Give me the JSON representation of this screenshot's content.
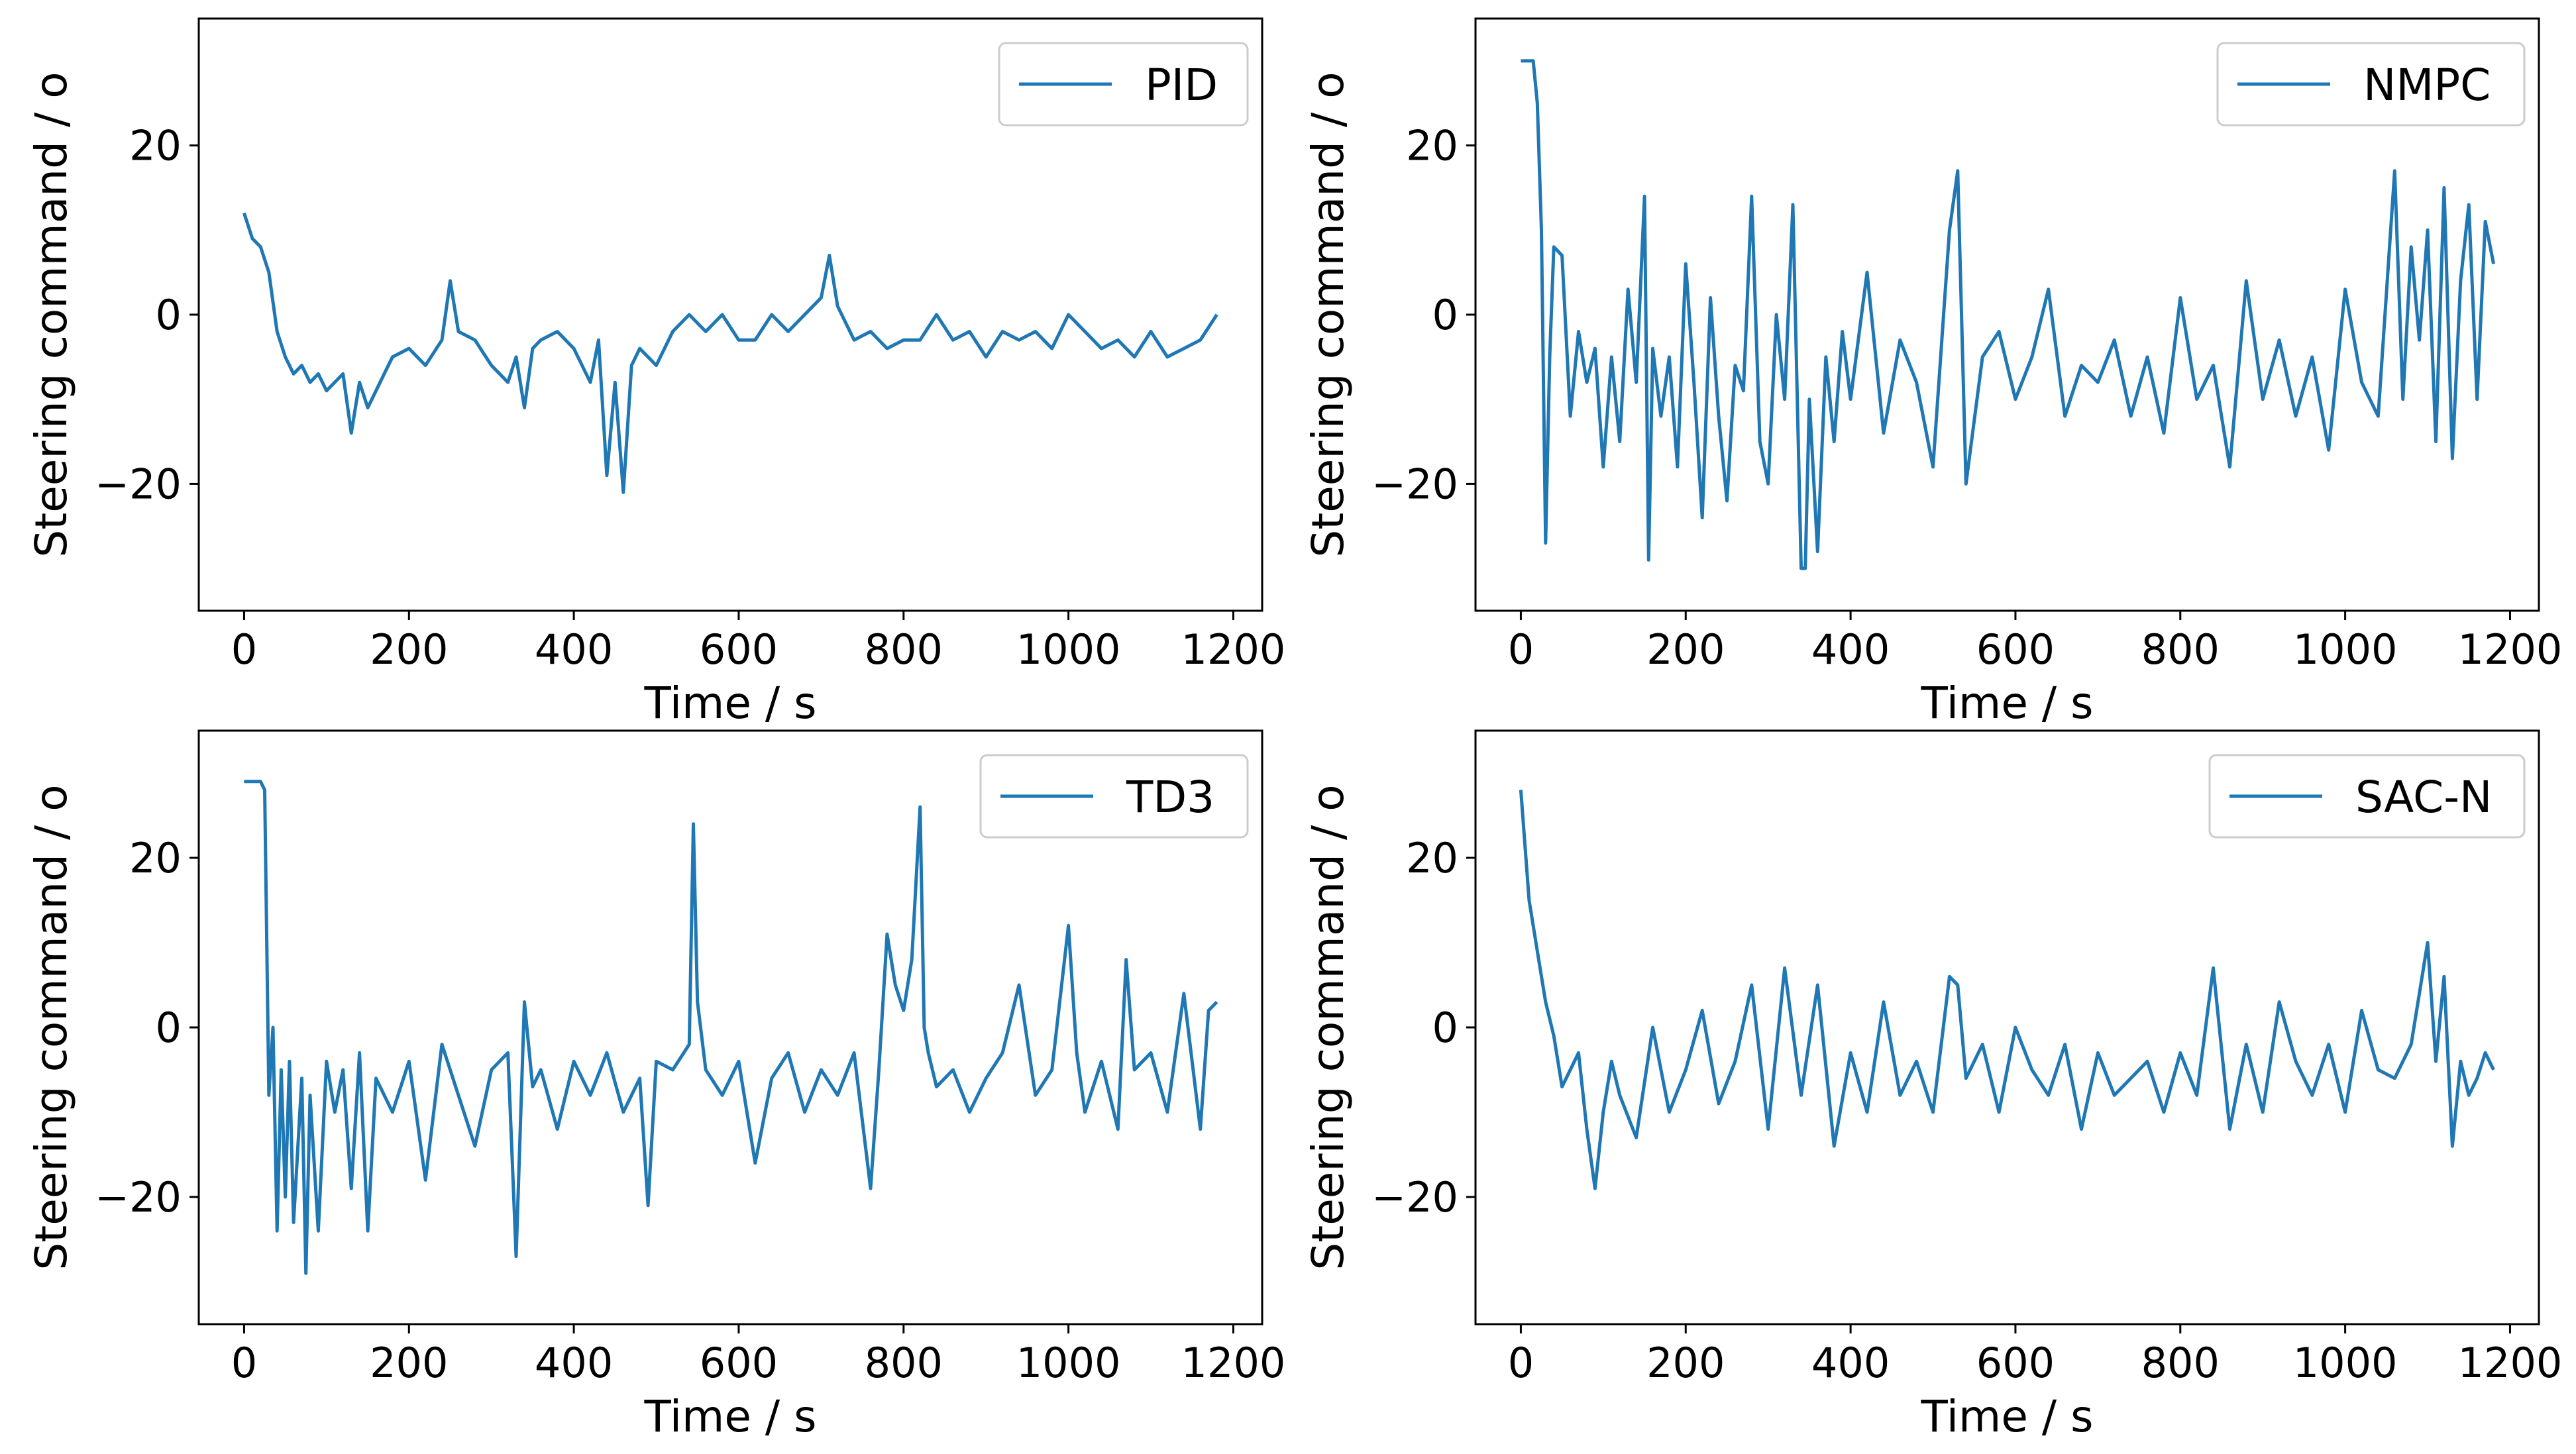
{
  "colors": {
    "series": "#1f77b4",
    "axis": "#000000",
    "legend_border": "#cccccc"
  },
  "chart_data": [
    {
      "type": "line",
      "title": "",
      "xlabel": "Time / s",
      "ylabel": "Steering command / o",
      "xlim": [
        -55,
        1235
      ],
      "ylim": [
        -35,
        35
      ],
      "xticks": [
        "0",
        "200",
        "400",
        "600",
        "800",
        "1000",
        "1200"
      ],
      "yticks": [
        "20",
        "0",
        "−20"
      ],
      "legend": "top-right",
      "series": [
        {
          "name": "PID",
          "x": [
            0,
            10,
            20,
            30,
            40,
            50,
            60,
            70,
            80,
            90,
            100,
            120,
            130,
            140,
            150,
            170,
            180,
            200,
            220,
            240,
            250,
            260,
            280,
            300,
            320,
            330,
            340,
            350,
            360,
            380,
            400,
            420,
            430,
            440,
            450,
            460,
            470,
            480,
            500,
            520,
            540,
            560,
            580,
            600,
            620,
            640,
            660,
            680,
            700,
            710,
            720,
            740,
            760,
            780,
            800,
            820,
            840,
            860,
            880,
            900,
            920,
            940,
            960,
            980,
            1000,
            1020,
            1040,
            1060,
            1080,
            1100,
            1120,
            1140,
            1160,
            1180
          ],
          "values": [
            12,
            9,
            8,
            5,
            -2,
            -5,
            -7,
            -6,
            -8,
            -7,
            -9,
            -7,
            -14,
            -8,
            -11,
            -7,
            -5,
            -4,
            -6,
            -3,
            4,
            -2,
            -3,
            -6,
            -8,
            -5,
            -11,
            -4,
            -3,
            -2,
            -4,
            -8,
            -3,
            -19,
            -8,
            -21,
            -6,
            -4,
            -6,
            -2,
            0,
            -2,
            0,
            -3,
            -3,
            0,
            -2,
            0,
            2,
            7,
            1,
            -3,
            -2,
            -4,
            -3,
            -3,
            0,
            -3,
            -2,
            -5,
            -2,
            -3,
            -2,
            -4,
            0,
            -2,
            -4,
            -3,
            -5,
            -2,
            -5,
            -4,
            -3,
            0
          ]
        }
      ]
    },
    {
      "type": "line",
      "title": "",
      "xlabel": "Time / s",
      "ylabel": "Steering command / o",
      "xlim": [
        -55,
        1235
      ],
      "ylim": [
        -35,
        35
      ],
      "xticks": [
        "0",
        "200",
        "400",
        "600",
        "800",
        "1000",
        "1200"
      ],
      "yticks": [
        "20",
        "0",
        "−20"
      ],
      "legend": "top-right",
      "series": [
        {
          "name": "NMPC",
          "x": [
            0,
            15,
            20,
            25,
            30,
            35,
            40,
            50,
            60,
            70,
            80,
            90,
            100,
            110,
            120,
            130,
            140,
            150,
            155,
            160,
            170,
            180,
            190,
            200,
            210,
            220,
            230,
            240,
            250,
            260,
            270,
            280,
            290,
            300,
            310,
            320,
            330,
            340,
            345,
            350,
            360,
            370,
            380,
            390,
            400,
            420,
            440,
            460,
            480,
            500,
            520,
            530,
            540,
            560,
            580,
            600,
            620,
            640,
            660,
            680,
            700,
            720,
            740,
            760,
            780,
            800,
            820,
            840,
            860,
            880,
            900,
            920,
            940,
            960,
            980,
            1000,
            1020,
            1040,
            1060,
            1070,
            1080,
            1090,
            1100,
            1110,
            1120,
            1130,
            1140,
            1150,
            1160,
            1170,
            1180
          ],
          "values": [
            30,
            30,
            25,
            10,
            -27,
            -5,
            8,
            7,
            -12,
            -2,
            -8,
            -4,
            -18,
            -5,
            -15,
            3,
            -8,
            14,
            -29,
            -4,
            -12,
            -5,
            -18,
            6,
            -8,
            -24,
            2,
            -12,
            -22,
            -6,
            -9,
            14,
            -15,
            -20,
            0,
            -10,
            13,
            -30,
            -30,
            -10,
            -28,
            -5,
            -15,
            -2,
            -10,
            5,
            -14,
            -3,
            -8,
            -18,
            10,
            17,
            -20,
            -5,
            -2,
            -10,
            -5,
            3,
            -12,
            -6,
            -8,
            -3,
            -12,
            -5,
            -14,
            2,
            -10,
            -6,
            -18,
            4,
            -10,
            -3,
            -12,
            -5,
            -16,
            3,
            -8,
            -12,
            17,
            -10,
            8,
            -3,
            10,
            -15,
            15,
            -17,
            4,
            13,
            -10,
            11,
            6
          ]
        }
      ]
    },
    {
      "type": "line",
      "title": "",
      "xlabel": "Time / s",
      "ylabel": "Steering command / o",
      "xlim": [
        -55,
        1235
      ],
      "ylim": [
        -35,
        35
      ],
      "xticks": [
        "0",
        "200",
        "400",
        "600",
        "800",
        "1000",
        "1200"
      ],
      "yticks": [
        "20",
        "0",
        "−20"
      ],
      "legend": "top-right",
      "series": [
        {
          "name": "TD3",
          "x": [
            0,
            10,
            15,
            20,
            25,
            30,
            35,
            40,
            45,
            50,
            55,
            60,
            70,
            75,
            80,
            90,
            100,
            110,
            120,
            130,
            140,
            150,
            160,
            180,
            200,
            220,
            240,
            260,
            280,
            300,
            320,
            330,
            340,
            350,
            360,
            380,
            400,
            420,
            440,
            460,
            480,
            490,
            500,
            520,
            540,
            545,
            550,
            560,
            580,
            600,
            620,
            640,
            660,
            680,
            700,
            720,
            740,
            760,
            770,
            780,
            790,
            800,
            810,
            820,
            825,
            830,
            840,
            860,
            880,
            900,
            920,
            940,
            960,
            980,
            1000,
            1010,
            1020,
            1040,
            1060,
            1070,
            1080,
            1100,
            1120,
            1140,
            1160,
            1170,
            1180
          ],
          "values": [
            29,
            29,
            29,
            29,
            28,
            -8,
            0,
            -24,
            -5,
            -20,
            -4,
            -23,
            -6,
            -29,
            -8,
            -24,
            -4,
            -10,
            -5,
            -19,
            -3,
            -24,
            -6,
            -10,
            -4,
            -18,
            -2,
            -8,
            -14,
            -5,
            -3,
            -27,
            3,
            -7,
            -5,
            -12,
            -4,
            -8,
            -3,
            -10,
            -6,
            -21,
            -4,
            -5,
            -2,
            24,
            3,
            -5,
            -8,
            -4,
            -16,
            -6,
            -3,
            -10,
            -5,
            -8,
            -3,
            -19,
            -5,
            11,
            5,
            2,
            8,
            26,
            0,
            -3,
            -7,
            -5,
            -10,
            -6,
            -3,
            5,
            -8,
            -5,
            12,
            -3,
            -10,
            -4,
            -12,
            8,
            -5,
            -3,
            -10,
            4,
            -12,
            2,
            3
          ]
        }
      ]
    },
    {
      "type": "line",
      "title": "",
      "xlabel": "Time / s",
      "ylabel": "Steering command / o",
      "xlim": [
        -55,
        1235
      ],
      "ylim": [
        -35,
        35
      ],
      "xticks": [
        "0",
        "200",
        "400",
        "600",
        "800",
        "1000",
        "1200"
      ],
      "yticks": [
        "20",
        "0",
        "−20"
      ],
      "legend": "top-right",
      "series": [
        {
          "name": "SAC-N",
          "x": [
            0,
            10,
            20,
            30,
            40,
            50,
            60,
            70,
            80,
            90,
            100,
            110,
            120,
            140,
            160,
            180,
            200,
            220,
            240,
            260,
            280,
            300,
            320,
            340,
            360,
            380,
            400,
            420,
            440,
            460,
            480,
            500,
            520,
            530,
            540,
            560,
            580,
            600,
            620,
            640,
            660,
            680,
            700,
            720,
            740,
            760,
            780,
            800,
            820,
            840,
            860,
            880,
            900,
            920,
            940,
            960,
            980,
            1000,
            1020,
            1040,
            1060,
            1080,
            1100,
            1110,
            1120,
            1130,
            1140,
            1150,
            1160,
            1170,
            1180
          ],
          "values": [
            28,
            15,
            9,
            3,
            -1,
            -7,
            -5,
            -3,
            -12,
            -19,
            -10,
            -4,
            -8,
            -13,
            0,
            -10,
            -5,
            2,
            -9,
            -4,
            5,
            -12,
            7,
            -8,
            5,
            -14,
            -3,
            -10,
            3,
            -8,
            -4,
            -10,
            6,
            5,
            -6,
            -2,
            -10,
            0,
            -5,
            -8,
            -2,
            -12,
            -3,
            -8,
            -6,
            -4,
            -10,
            -3,
            -8,
            7,
            -12,
            -2,
            -10,
            3,
            -4,
            -8,
            -2,
            -10,
            2,
            -5,
            -6,
            -2,
            10,
            -4,
            6,
            -14,
            -4,
            -8,
            -6,
            -3,
            -5
          ]
        }
      ]
    }
  ]
}
